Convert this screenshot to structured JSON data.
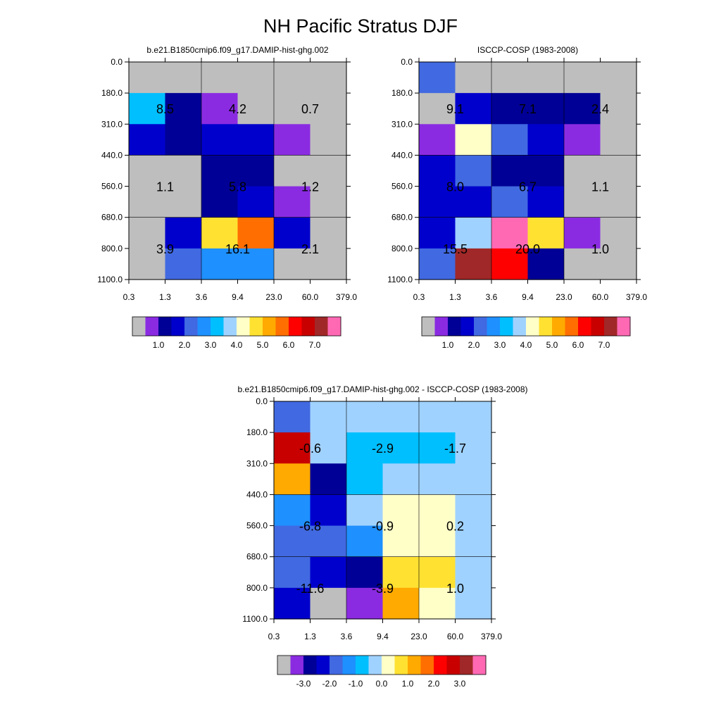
{
  "figure": {
    "title": "NH Pacific Stratus DJF"
  },
  "chart_data": [
    {
      "type": "heatmap",
      "title": "b.e21.B1850cmip6.f09_g17.DAMIP-hist-ghg.002",
      "x_ticks": [
        "0.3",
        "1.3",
        "3.6",
        "9.4",
        "23.0",
        "60.0",
        "379.0"
      ],
      "y_ticks": [
        "0.0",
        "180.0",
        "310.0",
        "440.0",
        "560.0",
        "680.0",
        "800.0",
        "1100.0"
      ],
      "cells": [
        [
          "gray",
          "gray",
          "gray",
          "gray",
          "gray",
          "gray"
        ],
        [
          "deepskyblue",
          "navy",
          "purple",
          "gray",
          "gray",
          "gray"
        ],
        [
          "mediumblue",
          "navy",
          "mediumblue",
          "mediumblue",
          "purple",
          "gray"
        ],
        [
          "gray",
          "gray",
          "navy",
          "navy",
          "gray",
          "gray"
        ],
        [
          "gray",
          "gray",
          "navy",
          "mediumblue",
          "purple",
          "gray"
        ],
        [
          "gray",
          "mediumblue",
          "gold",
          "darkorange",
          "mediumblue",
          "gray"
        ],
        [
          "gray",
          "royalblue",
          "dodgerblue",
          "dodgerblue",
          "gray",
          "gray"
        ]
      ],
      "box_labels": [
        [
          "8.5",
          "4.2",
          "0.7"
        ],
        [
          "1.1",
          "5.8",
          "1.2"
        ],
        [
          "3.9",
          "16.1",
          "2.1"
        ]
      ],
      "colorbar": {
        "colors": [
          "gray",
          "purple",
          "navy",
          "mediumblue",
          "royalblue",
          "dodgerblue",
          "deepskyblue",
          "lightskyblue",
          "lightyellow",
          "gold",
          "orange",
          "darkorange",
          "red",
          "crimson",
          "firebrick",
          "hotpink"
        ],
        "labels": [
          "1.0",
          "2.0",
          "3.0",
          "4.0",
          "5.0",
          "6.0",
          "7.0"
        ]
      }
    },
    {
      "type": "heatmap",
      "title": "ISCCP-COSP (1983-2008)",
      "x_ticks": [
        "0.3",
        "1.3",
        "3.6",
        "9.4",
        "23.0",
        "60.0",
        "379.0"
      ],
      "y_ticks": [
        "0.0",
        "180.0",
        "310.0",
        "440.0",
        "560.0",
        "680.0",
        "800.0",
        "1100.0"
      ],
      "cells": [
        [
          "royalblue",
          "gray",
          "gray",
          "gray",
          "gray",
          "gray"
        ],
        [
          "gray",
          "mediumblue",
          "navy",
          "navy",
          "navy",
          "gray"
        ],
        [
          "purple",
          "lightyellow",
          "royalblue",
          "mediumblue",
          "purple",
          "gray"
        ],
        [
          "mediumblue",
          "royalblue",
          "navy",
          "navy",
          "gray",
          "gray"
        ],
        [
          "mediumblue",
          "mediumblue",
          "royalblue",
          "mediumblue",
          "gray",
          "gray"
        ],
        [
          "mediumblue",
          "lightskyblue",
          "hotpink",
          "gold",
          "purple",
          "gray"
        ],
        [
          "royalblue",
          "firebrick",
          "red",
          "navy",
          "gray",
          "gray"
        ]
      ],
      "box_labels": [
        [
          "9.1",
          "7.1",
          "2.4"
        ],
        [
          "8.0",
          "6.7",
          "1.1"
        ],
        [
          "15.5",
          "20.0",
          "1.0"
        ]
      ],
      "colorbar": {
        "colors": [
          "gray",
          "purple",
          "navy",
          "mediumblue",
          "royalblue",
          "dodgerblue",
          "deepskyblue",
          "lightskyblue",
          "lightyellow",
          "gold",
          "orange",
          "darkorange",
          "red",
          "crimson",
          "firebrick",
          "hotpink"
        ],
        "labels": [
          "1.0",
          "2.0",
          "3.0",
          "4.0",
          "5.0",
          "6.0",
          "7.0"
        ]
      }
    },
    {
      "type": "heatmap",
      "title": "b.e21.B1850cmip6.f09_g17.DAMIP-hist-ghg.002 - ISCCP-COSP (1983-2008)",
      "x_ticks": [
        "0.3",
        "1.3",
        "3.6",
        "9.4",
        "23.0",
        "60.0",
        "379.0"
      ],
      "y_ticks": [
        "0.0",
        "180.0",
        "310.0",
        "440.0",
        "560.0",
        "680.0",
        "800.0",
        "1100.0"
      ],
      "cells": [
        [
          "royalblue",
          "lightskyblue",
          "lightskyblue",
          "lightskyblue",
          "lightskyblue",
          "lightskyblue"
        ],
        [
          "crimson",
          "lightskyblue",
          "deepskyblue",
          "deepskyblue",
          "deepskyblue",
          "lightskyblue"
        ],
        [
          "orange",
          "navy",
          "deepskyblue",
          "lightskyblue",
          "lightskyblue",
          "lightskyblue"
        ],
        [
          "dodgerblue",
          "mediumblue",
          "lightskyblue",
          "lightyellow",
          "lightyellow",
          "lightskyblue"
        ],
        [
          "royalblue",
          "royalblue",
          "dodgerblue",
          "lightyellow",
          "lightyellow",
          "lightskyblue"
        ],
        [
          "royalblue",
          "mediumblue",
          "navy",
          "gold",
          "gold",
          "lightskyblue"
        ],
        [
          "mediumblue",
          "gray",
          "purple",
          "orange",
          "lightyellow",
          "lightskyblue"
        ]
      ],
      "box_labels": [
        [
          "-0.6",
          "-2.9",
          "-1.7"
        ],
        [
          "-6.8",
          "-0.9",
          "0.2"
        ],
        [
          "-11.6",
          "-3.9",
          "1.0"
        ]
      ],
      "colorbar": {
        "colors": [
          "gray",
          "purple",
          "navy",
          "mediumblue",
          "royalblue",
          "dodgerblue",
          "deepskyblue",
          "lightskyblue",
          "lightyellow",
          "gold",
          "orange",
          "darkorange",
          "red",
          "crimson",
          "firebrick",
          "hotpink"
        ],
        "labels": [
          "-3.0",
          "-2.0",
          "-1.0",
          "0.0",
          "1.0",
          "2.0",
          "3.0"
        ]
      }
    }
  ],
  "palette": {
    "gray": "#bebebe",
    "purple": "#8a2be2",
    "navy": "#000096",
    "mediumblue": "#0000cd",
    "royalblue": "#4169e1",
    "dodgerblue": "#1e90ff",
    "deepskyblue": "#00bfff",
    "lightskyblue": "#a0d2ff",
    "lightyellow": "#ffffc8",
    "gold": "#ffe132",
    "orange": "#ffaa00",
    "darkorange": "#ff6e00",
    "red": "#ff0000",
    "crimson": "#c80000",
    "firebrick": "#a02828",
    "hotpink": "#ff69b4"
  }
}
